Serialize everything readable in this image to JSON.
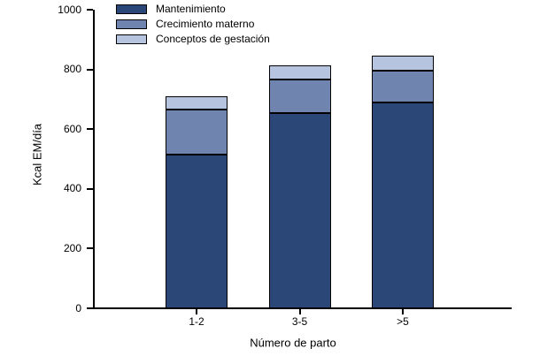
{
  "chart_data": {
    "type": "bar",
    "stacked": true,
    "xlabel": "Número de parto",
    "ylabel": "Kcal EM/día",
    "categories": [
      "1-2",
      "3-5",
      ">5"
    ],
    "series": [
      {
        "name": "Mantenimiento",
        "color": "#2B4778",
        "values": [
          515,
          655,
          690
        ]
      },
      {
        "name": "Crecimiento materno",
        "color": "#6F84AE",
        "values": [
          150,
          110,
          105
        ]
      },
      {
        "name": "Conceptos de gestación",
        "color": "#B6C4DF",
        "values": [
          45,
          50,
          50
        ]
      }
    ],
    "ylim": [
      0,
      1000
    ],
    "yticks": [
      0,
      200,
      400,
      600,
      800,
      1000
    ],
    "legend_position": "top-left",
    "grid": false,
    "axis_color": "#000000",
    "bar_border_color": "#000000",
    "background": "#FFFFFF"
  }
}
